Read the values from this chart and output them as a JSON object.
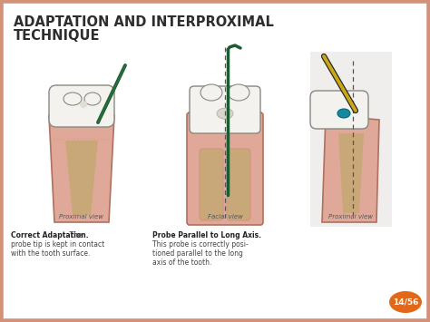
{
  "title_line1": "ADAPTATION AND INTERPROXIMAL",
  "title_line2": "TECHNIQUE",
  "title_color": "#2d2d2d",
  "title_fontsize": 10.5,
  "bg_color": "#ffffff",
  "slide_bg": "#f5f0ee",
  "border_color": "#d4917a",
  "caption1_bold": "Correct Adaptation.",
  "caption1_rest": " The",
  "caption1_line2": "probe tip is kept in contact",
  "caption1_line3": "with the tooth surface.",
  "caption2_bold": "Probe Parallel to Long Axis.",
  "caption2_line2": "This probe is correctly posi-",
  "caption2_line3": "tioned parallel to the long",
  "caption2_line4": "axis of the tooth.",
  "label1": "Proximal view",
  "label2": "Facial view",
  "label3": "Proximal view",
  "badge_text": "14/56",
  "badge_color": "#e06818",
  "badge_text_color": "#ffffff",
  "gum_color": "#e0a898",
  "gum_edge": "#b07060",
  "gum_inner": "#d49080",
  "tooth_white": "#f4f2ee",
  "tooth_cream": "#e8e0cc",
  "root_tan": "#c8a878",
  "probe_green": "#1a5c30",
  "probe_green_light": "#2a7040",
  "probe_gold": "#c8a818",
  "probe_black": "#222222",
  "dashed_color": "#555555",
  "teal_dot": "#1888a0",
  "panel_bg": "#ffffff",
  "text_dark": "#222222",
  "text_gray": "#444444"
}
